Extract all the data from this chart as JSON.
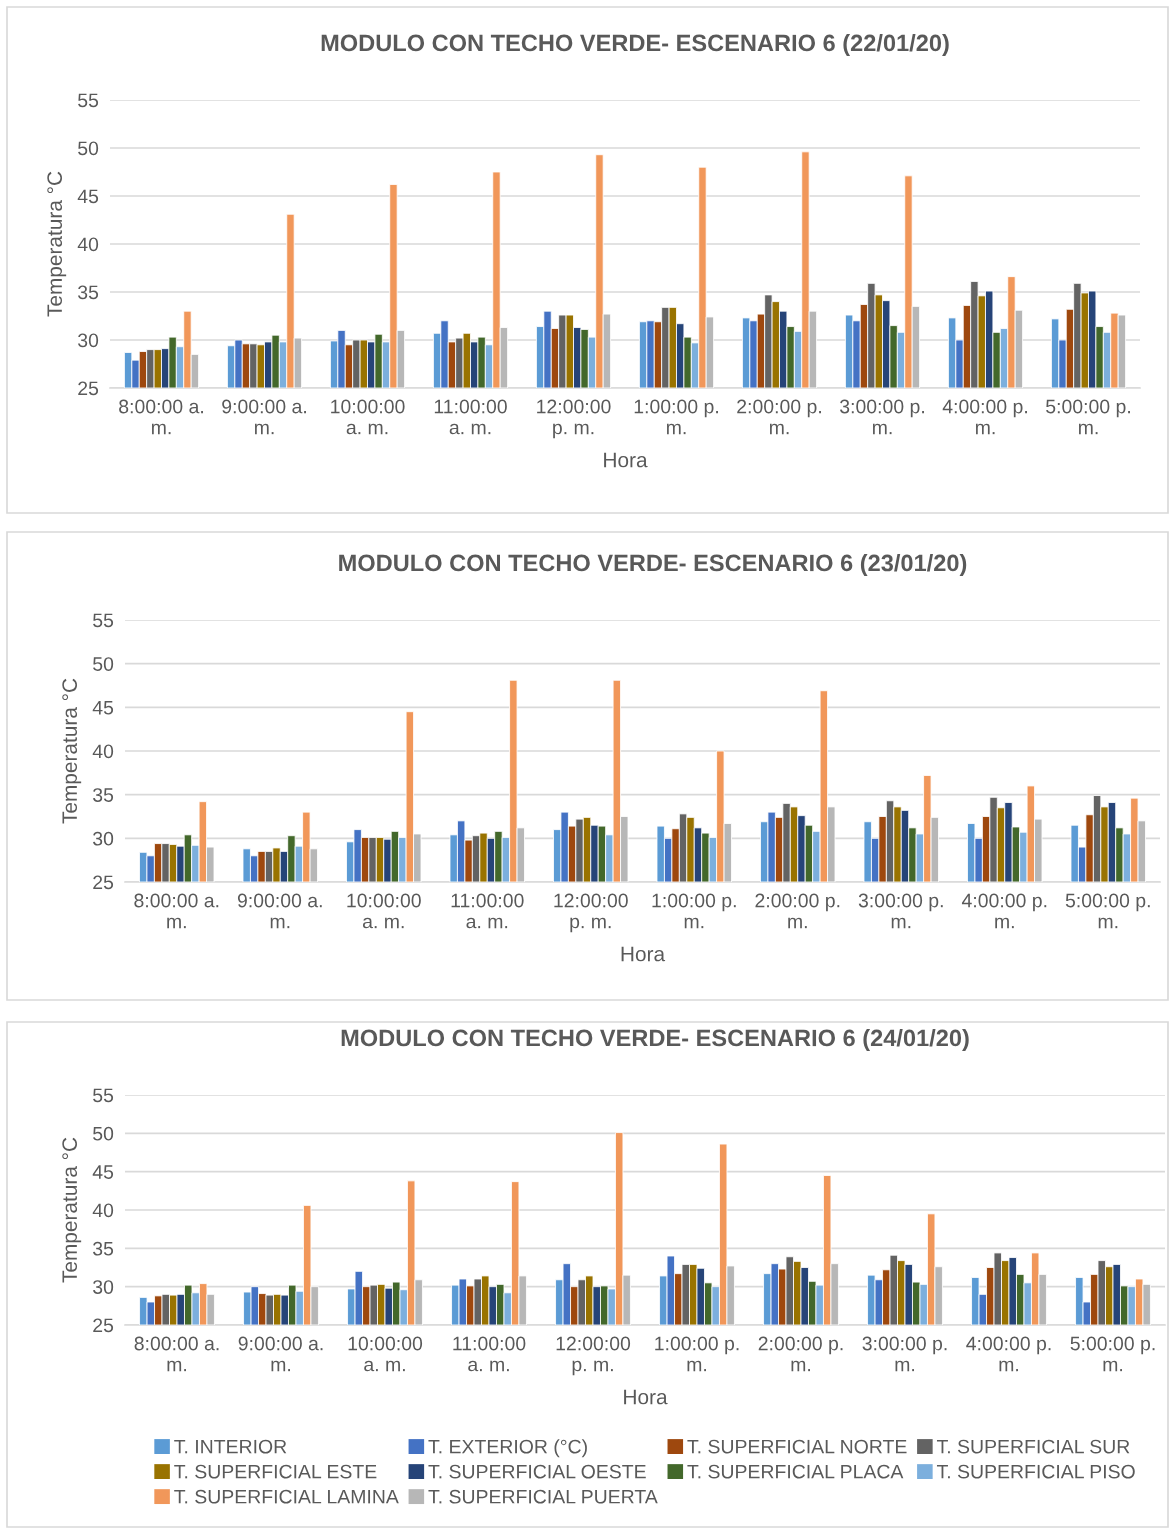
{
  "chart_data": [
    {
      "type": "bar",
      "title": "MODULO CON TECHO VERDE- ESCENARIO 6 (22/01/20)",
      "xlabel": "Hora",
      "ylabel": "Temperatura °C",
      "categories": [
        "8:00:00 a. m.",
        "9:00:00 a. m.",
        "10:00:00 a. m.",
        "11:00:00 a. m.",
        "12:00:00 p. m.",
        "1:00:00 p. m.",
        "2:00:00 p. m.",
        "3:00:00 p. m.",
        "4:00:00 p. m.",
        "5:00:00 p. m."
      ],
      "ylim": [
        25,
        55
      ],
      "yticks": [
        25,
        30,
        35,
        40,
        45,
        50,
        55
      ],
      "grid": "y",
      "legend": false,
      "series": [
        {
          "color": "#5b9bd5",
          "values": [
            28.7,
            29.4,
            29.9,
            30.7,
            31.4,
            31.9,
            32.3,
            32.6,
            32.3,
            32.2
          ]
        },
        {
          "color": "#4472c4",
          "values": [
            27.9,
            30.0,
            31.0,
            32.0,
            33.0,
            32.0,
            32.0,
            32.0,
            30.0,
            30.0
          ]
        },
        {
          "color": "#9e480e",
          "values": [
            28.8,
            29.6,
            29.5,
            29.8,
            31.2,
            31.9,
            32.7,
            33.7,
            33.6,
            33.2
          ]
        },
        {
          "color": "#636363",
          "values": [
            29.0,
            29.6,
            30.0,
            30.2,
            32.6,
            33.4,
            34.7,
            35.9,
            36.1,
            35.9
          ]
        },
        {
          "color": "#997300",
          "values": [
            29.0,
            29.5,
            30.0,
            30.7,
            32.6,
            33.4,
            34.0,
            34.7,
            34.6,
            34.9
          ]
        },
        {
          "color": "#264478",
          "values": [
            29.1,
            29.8,
            29.8,
            29.8,
            31.3,
            31.7,
            33.0,
            34.1,
            35.1,
            35.1
          ]
        },
        {
          "color": "#43682b",
          "values": [
            30.3,
            30.5,
            30.6,
            30.3,
            31.1,
            30.3,
            31.4,
            31.5,
            30.8,
            31.4
          ]
        },
        {
          "color": "#7cafdd",
          "values": [
            29.3,
            29.8,
            29.8,
            29.5,
            30.3,
            29.7,
            30.9,
            30.8,
            31.2,
            30.8
          ]
        },
        {
          "color": "#f1975a",
          "values": [
            33.0,
            43.1,
            46.2,
            47.5,
            49.3,
            48.0,
            49.6,
            47.1,
            36.6,
            32.8
          ]
        },
        {
          "color": "#b7b7b7",
          "values": [
            28.5,
            30.2,
            31.0,
            31.3,
            32.7,
            32.4,
            33.0,
            33.5,
            33.1,
            32.6
          ]
        }
      ]
    },
    {
      "type": "bar",
      "title": "MODULO CON TECHO VERDE- ESCENARIO 6 (23/01/20)",
      "xlabel": "Hora",
      "ylabel": "Temperatura °C",
      "categories": [
        "8:00:00 a. m.",
        "9:00:00 a. m.",
        "10:00:00 a. m.",
        "11:00:00 a. m.",
        "12:00:00 p. m.",
        "1:00:00 p. m.",
        "2:00:00 p. m.",
        "3:00:00 p. m.",
        "4:00:00 p. m.",
        "5:00:00 p. m."
      ],
      "ylim": [
        25,
        55
      ],
      "yticks": [
        25,
        30,
        35,
        40,
        45,
        50,
        55
      ],
      "grid": "y",
      "legend": false,
      "series": [
        {
          "color": "#5b9bd5",
          "values": [
            28.4,
            28.8,
            29.6,
            30.4,
            31.0,
            31.4,
            31.9,
            31.9,
            31.7,
            31.5
          ]
        },
        {
          "color": "#4472c4",
          "values": [
            28.0,
            28.0,
            31.0,
            32.0,
            33.0,
            30.0,
            33.0,
            30.0,
            30.0,
            29.0
          ]
        },
        {
          "color": "#9e480e",
          "values": [
            29.4,
            28.5,
            30.1,
            29.8,
            31.4,
            31.1,
            32.4,
            32.5,
            32.5,
            32.7
          ]
        },
        {
          "color": "#636363",
          "values": [
            29.4,
            28.5,
            30.1,
            30.3,
            32.2,
            32.8,
            34.0,
            34.3,
            34.7,
            34.9
          ]
        },
        {
          "color": "#997300",
          "values": [
            29.3,
            28.9,
            30.1,
            30.6,
            32.4,
            32.4,
            33.6,
            33.6,
            33.5,
            33.6
          ]
        },
        {
          "color": "#264478",
          "values": [
            29.1,
            28.5,
            29.9,
            30.0,
            31.5,
            31.2,
            32.6,
            33.2,
            34.1,
            34.1
          ]
        },
        {
          "color": "#43682b",
          "values": [
            30.4,
            30.3,
            30.8,
            30.8,
            31.4,
            30.6,
            31.5,
            31.2,
            31.3,
            31.2
          ]
        },
        {
          "color": "#7cafdd",
          "values": [
            29.2,
            29.1,
            30.1,
            30.1,
            30.4,
            30.1,
            30.8,
            30.5,
            30.7,
            30.5
          ]
        },
        {
          "color": "#f1975a",
          "values": [
            34.2,
            33.0,
            44.5,
            48.1,
            48.1,
            40.0,
            46.9,
            37.2,
            36.0,
            34.6
          ]
        },
        {
          "color": "#b7b7b7",
          "values": [
            29.0,
            28.8,
            30.5,
            31.2,
            32.5,
            31.7,
            33.6,
            32.4,
            32.2,
            32.0
          ]
        }
      ]
    },
    {
      "type": "bar",
      "title": "MODULO CON TECHO VERDE- ESCENARIO 6 (24/01/20)",
      "xlabel": "Hora",
      "ylabel": "Temperatura °C",
      "categories": [
        "8:00:00 a. m.",
        "9:00:00 a. m.",
        "10:00:00 a. m.",
        "11:00:00 a. m.",
        "12:00:00 p. m.",
        "1:00:00 p. m.",
        "2:00:00 p. m.",
        "3:00:00 p. m.",
        "4:00:00 p. m.",
        "5:00:00 p. m."
      ],
      "ylim": [
        25,
        55
      ],
      "yticks": [
        25,
        30,
        35,
        40,
        45,
        50,
        55
      ],
      "grid": "y",
      "legend": "bottom",
      "series": [
        {
          "name": "T. INTERIOR",
          "color": "#5b9bd5",
          "values": [
            28.6,
            29.3,
            29.7,
            30.2,
            30.9,
            31.4,
            31.7,
            31.5,
            31.2,
            31.2
          ]
        },
        {
          "name": "T. EXTERIOR (°C)",
          "color": "#4472c4",
          "values": [
            28.0,
            30.0,
            32.0,
            31.0,
            33.0,
            34.0,
            33.0,
            30.9,
            29.0,
            28.0
          ]
        },
        {
          "name": "T. SUPERFICIAL NORTE",
          "color": "#9e480e",
          "values": [
            28.8,
            29.1,
            30.0,
            30.1,
            30.0,
            31.7,
            32.3,
            32.2,
            32.5,
            31.6
          ]
        },
        {
          "name": "T. SUPERFICIAL SUR",
          "color": "#636363",
          "values": [
            29.0,
            28.9,
            30.2,
            31.0,
            30.9,
            32.9,
            33.9,
            34.1,
            34.4,
            33.4
          ]
        },
        {
          "name": "T. SUPERFICIAL ESTE",
          "color": "#997300",
          "values": [
            28.9,
            29.0,
            30.3,
            31.4,
            31.4,
            32.9,
            33.3,
            33.4,
            33.4,
            32.6
          ]
        },
        {
          "name": "T. SUPERFICIAL OESTE",
          "color": "#264478",
          "values": [
            29.0,
            28.9,
            29.8,
            30.0,
            30.0,
            32.4,
            32.5,
            32.9,
            33.8,
            32.9
          ]
        },
        {
          "name": "T. SUPERFICIAL PLACA",
          "color": "#43682b",
          "values": [
            30.2,
            30.2,
            30.6,
            30.3,
            30.1,
            30.5,
            30.7,
            30.6,
            31.6,
            30.1
          ]
        },
        {
          "name": "T. SUPERFICIAL PISO",
          "color": "#7cafdd",
          "values": [
            29.2,
            29.4,
            29.6,
            29.2,
            29.7,
            30.0,
            30.2,
            30.3,
            30.5,
            30.0
          ]
        },
        {
          "name": "T. SUPERFICIAL LAMINA",
          "color": "#f1975a",
          "values": [
            30.4,
            40.6,
            43.8,
            43.7,
            50.1,
            48.6,
            44.5,
            39.5,
            34.4,
            31.0
          ]
        },
        {
          "name": "T. SUPERFICIAL PUERTA",
          "color": "#b7b7b7",
          "values": [
            29.0,
            30.0,
            30.9,
            31.4,
            31.5,
            32.7,
            33.0,
            32.6,
            31.6,
            30.3
          ]
        }
      ]
    }
  ]
}
